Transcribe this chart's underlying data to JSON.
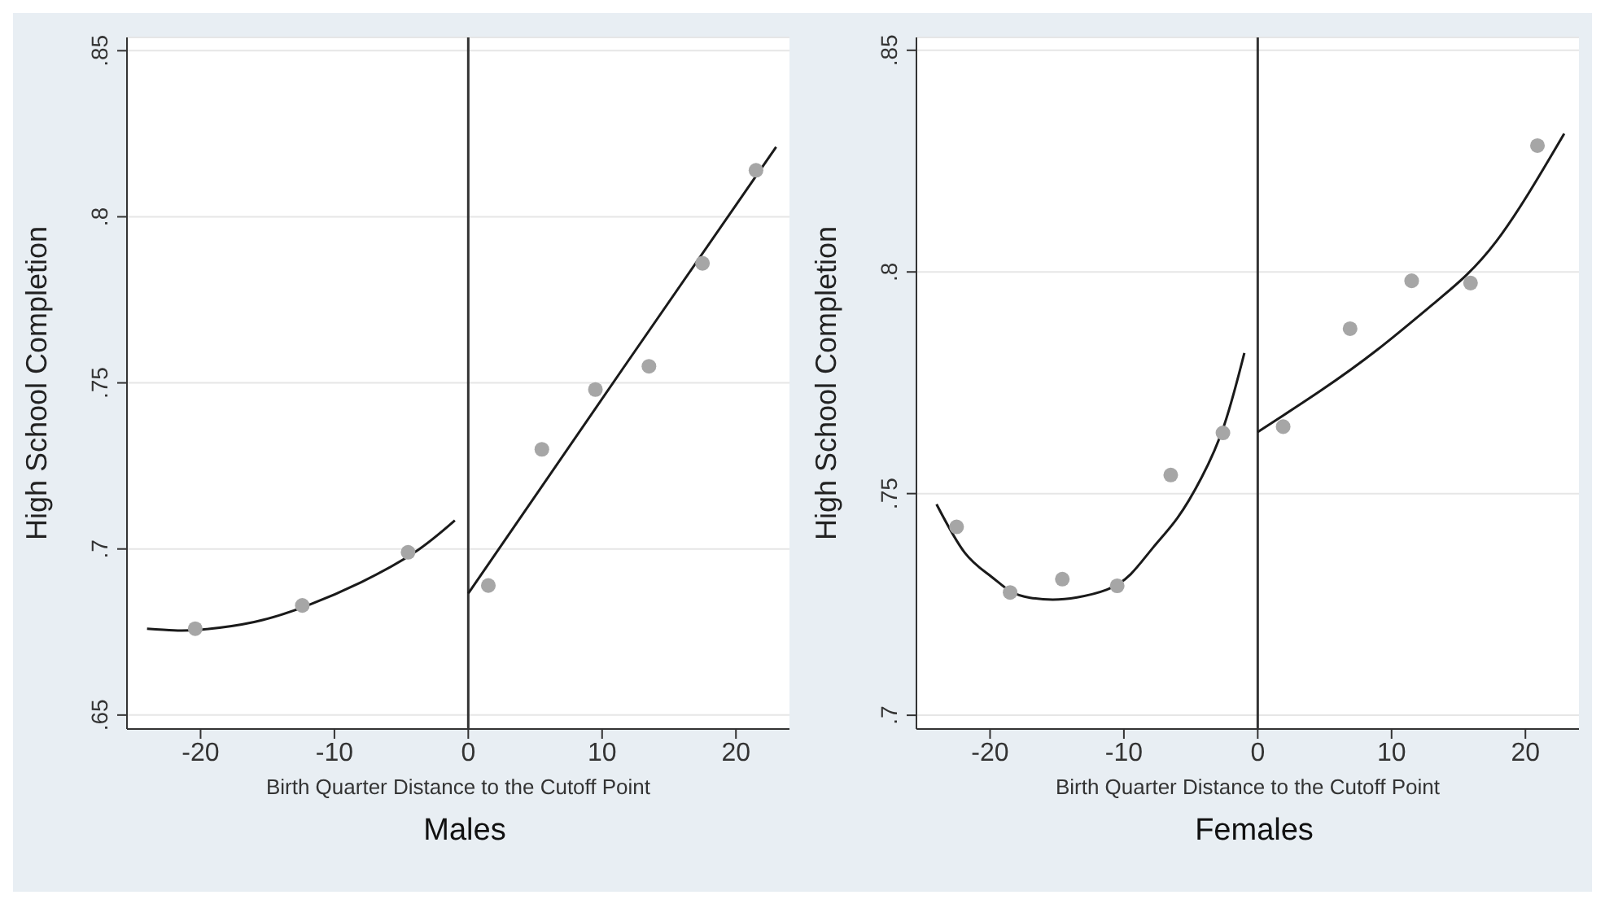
{
  "chart_data": [
    {
      "type": "scatter",
      "title": "Males",
      "xlabel": "Birth Quarter Distance to the Cutoff Point",
      "ylabel": "High School Completion",
      "xlim": [
        -25.5,
        24
      ],
      "xticks": [
        -20,
        -10,
        0,
        10,
        20
      ],
      "ylim": [
        0.6458,
        0.854
      ],
      "yticks": [
        {
          "value": 0.65,
          "label": ".65"
        },
        {
          "value": 0.7,
          "label": ".7"
        },
        {
          "value": 0.75,
          "label": ".75"
        },
        {
          "value": 0.8,
          "label": ".8"
        },
        {
          "value": 0.85,
          "label": ".85"
        }
      ],
      "grid": "y",
      "marker": "circle",
      "ref_lines": [
        {
          "axis": "x",
          "value": 0,
          "color": "#333333"
        }
      ],
      "series": [
        {
          "color": "#a6a6a6",
          "x": [
            -20.4,
            -12.4,
            -4.5,
            1.5,
            5.5,
            9.5,
            13.5,
            17.5,
            21.5
          ],
          "values": [
            0.676,
            0.683,
            0.699,
            0.689,
            0.73,
            0.748,
            0.755,
            0.786,
            0.814
          ]
        },
        {
          "type": "line",
          "marker": "none",
          "color": "#1a1a1a",
          "x": [
            -24,
            -22,
            -20,
            -16,
            -12,
            -8,
            -4,
            -1
          ],
          "values": [
            0.676,
            0.6755,
            0.6757,
            0.678,
            0.683,
            0.69,
            0.699,
            0.7086
          ]
        },
        {
          "type": "line",
          "marker": "none",
          "color": "#1a1a1a",
          "x": [
            0,
            11.5,
            23
          ],
          "values": [
            0.6866,
            0.754,
            0.821
          ]
        }
      ]
    },
    {
      "type": "scatter",
      "title": "Females",
      "xlabel": "Birth Quarter Distance to the Cutoff Point",
      "ylabel": "High School Completion",
      "xlim": [
        -25.5,
        24
      ],
      "xticks": [
        -20,
        -10,
        0,
        10,
        20
      ],
      "ylim": [
        0.6969,
        0.8529
      ],
      "yticks": [
        {
          "value": 0.7,
          "label": ".7"
        },
        {
          "value": 0.75,
          "label": ".75"
        },
        {
          "value": 0.8,
          "label": ".8"
        },
        {
          "value": 0.85,
          "label": ".85"
        }
      ],
      "grid": "y",
      "marker": "circle",
      "ref_lines": [
        {
          "axis": "x",
          "value": 0,
          "color": "#333333"
        }
      ],
      "series": [
        {
          "color": "#a6a6a6",
          "x": [
            -22.5,
            -18.5,
            -14.6,
            -10.5,
            -6.5,
            -2.6,
            1.9,
            6.9,
            11.5,
            15.9,
            20.9
          ],
          "values": [
            0.7425,
            0.7277,
            0.7307,
            0.7292,
            0.7542,
            0.7637,
            0.7651,
            0.7872,
            0.798,
            0.7975,
            0.8285
          ]
        },
        {
          "type": "line",
          "marker": "none",
          "color": "#1a1a1a",
          "x": [
            -24,
            -21.9,
            -20,
            -18.5,
            -17,
            -15.3,
            -13.5,
            -11.3,
            -9.5,
            -7.8,
            -6,
            -4.2,
            -2.5,
            -1
          ],
          "values": [
            0.7476,
            0.7367,
            0.7315,
            0.728,
            0.7265,
            0.7261,
            0.7266,
            0.7283,
            0.7318,
            0.7379,
            0.7445,
            0.7536,
            0.7655,
            0.7817
          ]
        },
        {
          "type": "line",
          "marker": "none",
          "color": "#1a1a1a",
          "x": [
            0,
            4.6,
            9,
            13.4,
            17.8,
            22.9
          ],
          "values": [
            0.7639,
            0.773,
            0.7826,
            0.7935,
            0.8068,
            0.8312
          ]
        }
      ]
    }
  ]
}
